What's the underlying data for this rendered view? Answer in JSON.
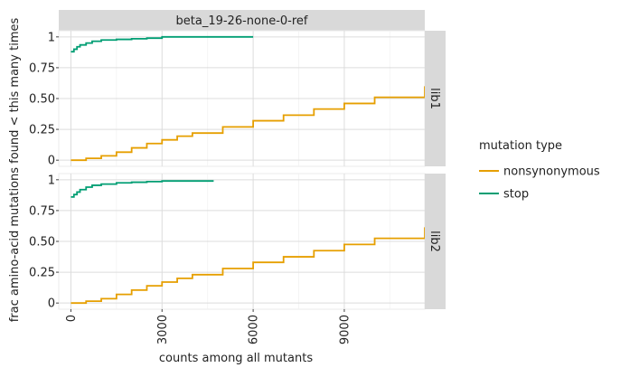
{
  "chart_data": {
    "type": "line",
    "title": "",
    "column_strip": "beta_19-26-none-0-ref",
    "xlabel": "counts among all mutants",
    "ylabel": "frac amino-acid mutations found < this many times",
    "xlim": [
      -400,
      11650
    ],
    "ylim": [
      -0.05,
      1.05
    ],
    "x_ticks": [
      0,
      3000,
      6000,
      9000
    ],
    "x_tick_labels": [
      "0",
      "3000",
      "6000",
      "9000"
    ],
    "y_ticks": [
      0,
      0.25,
      0.5,
      0.75,
      1
    ],
    "y_tick_labels": [
      "0",
      "0.25",
      "0.50",
      "0.75",
      "1"
    ],
    "grid": true,
    "legend": {
      "title": "mutation type",
      "position": "right",
      "entries": [
        {
          "name": "nonsynonymous",
          "color": "#e69f00"
        },
        {
          "name": "stop",
          "color": "#009e73"
        }
      ]
    },
    "panels": [
      {
        "strip": "lib1",
        "series": [
          {
            "name": "nonsynonymous",
            "color": "#e69f00",
            "x": [
              0,
              500,
              1000,
              1500,
              2000,
              2500,
              3000,
              3500,
              4000,
              5000,
              6000,
              7000,
              8000,
              9000,
              10000,
              11650
            ],
            "y": [
              0,
              0.015,
              0.035,
              0.065,
              0.1,
              0.135,
              0.165,
              0.195,
              0.22,
              0.27,
              0.32,
              0.365,
              0.415,
              0.46,
              0.51,
              0.6
            ]
          },
          {
            "name": "stop",
            "color": "#009e73",
            "x": [
              0,
              100,
              200,
              300,
              500,
              700,
              1000,
              1500,
              2000,
              2500,
              3000,
              6000
            ],
            "y": [
              0.88,
              0.9,
              0.92,
              0.935,
              0.95,
              0.965,
              0.975,
              0.98,
              0.985,
              0.99,
              1.0,
              1.0
            ]
          }
        ]
      },
      {
        "strip": "lib2",
        "series": [
          {
            "name": "nonsynonymous",
            "color": "#e69f00",
            "x": [
              0,
              500,
              1000,
              1500,
              2000,
              2500,
              3000,
              3500,
              4000,
              5000,
              6000,
              7000,
              8000,
              9000,
              10000,
              11650
            ],
            "y": [
              0,
              0.015,
              0.035,
              0.07,
              0.105,
              0.14,
              0.17,
              0.2,
              0.23,
              0.28,
              0.33,
              0.375,
              0.425,
              0.475,
              0.525,
              0.615
            ]
          },
          {
            "name": "stop",
            "color": "#009e73",
            "x": [
              0,
              100,
              200,
              300,
              500,
              700,
              1000,
              1500,
              2000,
              2500,
              3000,
              4700
            ],
            "y": [
              0.86,
              0.88,
              0.9,
              0.92,
              0.94,
              0.955,
              0.965,
              0.975,
              0.98,
              0.985,
              0.99,
              0.99
            ]
          }
        ]
      }
    ]
  }
}
